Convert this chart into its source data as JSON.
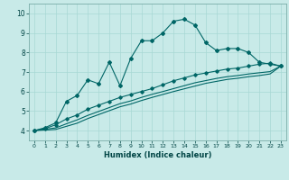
{
  "xlabel": "Humidex (Indice chaleur)",
  "bg_color": "#c8eae8",
  "line_color": "#006666",
  "grid_color": "#a8d8d4",
  "xlim": [
    -0.5,
    23.5
  ],
  "ylim": [
    3.5,
    10.5
  ],
  "xticks": [
    0,
    1,
    2,
    3,
    4,
    5,
    6,
    7,
    8,
    9,
    10,
    11,
    12,
    13,
    14,
    15,
    16,
    17,
    18,
    19,
    20,
    21,
    22,
    23
  ],
  "yticks": [
    4,
    5,
    6,
    7,
    8,
    9,
    10
  ],
  "s1_x": [
    0,
    1,
    2,
    3,
    4,
    5,
    6,
    7,
    8,
    9,
    10,
    11,
    12,
    13,
    14,
    15,
    16,
    17,
    18,
    19,
    20,
    21,
    22,
    23
  ],
  "s1_y": [
    4.0,
    4.15,
    4.4,
    5.5,
    5.8,
    6.6,
    6.4,
    7.5,
    6.3,
    7.7,
    8.6,
    8.6,
    9.0,
    9.6,
    9.7,
    9.4,
    8.5,
    8.1,
    8.2,
    8.2,
    8.0,
    7.5,
    7.4,
    7.3
  ],
  "s2_x": [
    0,
    1,
    2,
    3,
    4,
    5,
    6,
    7,
    8,
    9,
    10,
    11,
    12,
    13,
    14,
    15,
    16,
    17,
    18,
    19,
    20,
    21,
    22,
    23
  ],
  "s2_y": [
    4.0,
    4.1,
    4.3,
    4.6,
    4.8,
    5.1,
    5.3,
    5.5,
    5.7,
    5.85,
    6.0,
    6.15,
    6.35,
    6.55,
    6.7,
    6.85,
    6.95,
    7.05,
    7.15,
    7.2,
    7.3,
    7.4,
    7.45,
    7.3
  ],
  "s3_x": [
    0,
    1,
    2,
    3,
    4,
    5,
    6,
    7,
    8,
    9,
    10,
    11,
    12,
    13,
    14,
    15,
    16,
    17,
    18,
    19,
    20,
    21,
    22,
    23
  ],
  "s3_y": [
    4.0,
    4.07,
    4.14,
    4.35,
    4.55,
    4.78,
    4.98,
    5.18,
    5.38,
    5.52,
    5.7,
    5.86,
    6.0,
    6.15,
    6.3,
    6.45,
    6.56,
    6.67,
    6.76,
    6.82,
    6.9,
    6.96,
    7.02,
    7.3
  ],
  "s4_x": [
    0,
    1,
    2,
    3,
    4,
    5,
    6,
    7,
    8,
    9,
    10,
    11,
    12,
    13,
    14,
    15,
    16,
    17,
    18,
    19,
    20,
    21,
    22,
    23
  ],
  "s4_y": [
    4.0,
    4.03,
    4.06,
    4.22,
    4.38,
    4.62,
    4.82,
    5.02,
    5.22,
    5.36,
    5.54,
    5.7,
    5.85,
    6.0,
    6.14,
    6.28,
    6.42,
    6.52,
    6.62,
    6.68,
    6.76,
    6.82,
    6.9,
    7.3
  ]
}
